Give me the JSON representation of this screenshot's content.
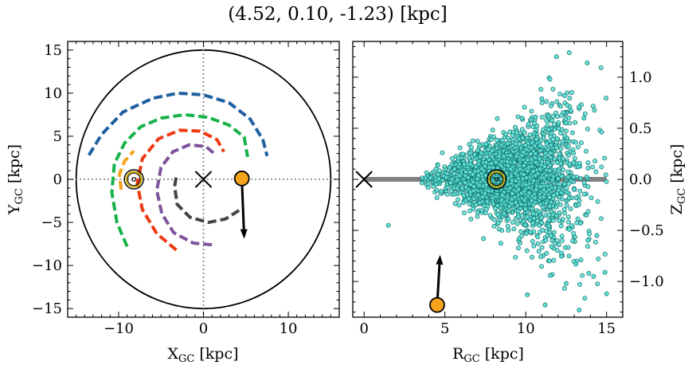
{
  "figure_title": "(4.52, 0.10, -1.23) [kpc]",
  "colors": {
    "blue": "#1f5fa0",
    "green": "#19b24b",
    "orange_arm": "#f5a31c",
    "red": "#ee3a13",
    "purple": "#7e549c",
    "dark": "#444444",
    "marker": "#f5a31c",
    "scatter_fill": "#5fe0d6",
    "scatter_edge": "#0f6f6a",
    "sun_ring": "#c9a800",
    "disk_line": "#808080"
  },
  "chart_data": [
    {
      "type": "line",
      "panel": "left",
      "xlabel": "X",
      "xlabel_sub": "GC",
      "xlabel_unit": " [kpc]",
      "ylabel": "Y",
      "ylabel_sub": "GC",
      "ylabel_unit": " [kpc]",
      "xlim": [
        -16,
        16
      ],
      "ylim": [
        -16,
        16
      ],
      "xticks": [
        -10,
        0,
        10
      ],
      "xtick_labels": [
        "−10",
        "0",
        "10"
      ],
      "yticks": [
        -15,
        -10,
        -5,
        0,
        5,
        10,
        15
      ],
      "ytick_labels": [
        "−15",
        "−10",
        "−5",
        "0",
        "5",
        "10",
        "15"
      ],
      "boundary_circle_radius": 15,
      "crosshair": {
        "x": 0,
        "y": 0
      },
      "galactic_center": [
        0,
        0
      ],
      "sun": [
        -8.2,
        0
      ],
      "object": {
        "x": 4.52,
        "y": 0.1
      },
      "velocity_arrow": {
        "from": [
          4.52,
          0.1
        ],
        "to": [
          4.8,
          -6.9
        ]
      },
      "spiral_arms": [
        {
          "color": "blue",
          "points": [
            [
              -13.5,
              2.8
            ],
            [
              -12,
              5.2
            ],
            [
              -9.5,
              7.8
            ],
            [
              -6,
              9.4
            ],
            [
              -3,
              10
            ],
            [
              0,
              9.8
            ],
            [
              3,
              8.9
            ],
            [
              5.5,
              7
            ],
            [
              7,
              4.6
            ],
            [
              7.5,
              2.7
            ]
          ]
        },
        {
          "color": "green",
          "points": [
            [
              -9,
              -7.8
            ],
            [
              -10.2,
              -5
            ],
            [
              -10.8,
              -1.5
            ],
            [
              -10.5,
              1.8
            ],
            [
              -9.3,
              4.2
            ],
            [
              -7.4,
              6.1
            ],
            [
              -5,
              7.1
            ],
            [
              -2.2,
              7.5
            ],
            [
              0.5,
              7.2
            ],
            [
              3,
              6.3
            ],
            [
              4.8,
              4.9
            ],
            [
              5.2,
              2.6
            ]
          ]
        },
        {
          "color": "orange_arm",
          "points": [
            [
              -9.7,
              -1.2
            ],
            [
              -9.9,
              0.6
            ],
            [
              -9.3,
              2.1
            ],
            [
              -8.2,
              3.3
            ]
          ]
        },
        {
          "color": "red",
          "points": [
            [
              -3.2,
              -8.2
            ],
            [
              -5.5,
              -6.3
            ],
            [
              -7.2,
              -3.5
            ],
            [
              -7.8,
              -0.5
            ],
            [
              -7.2,
              2.4
            ],
            [
              -5.3,
              4.7
            ],
            [
              -2.8,
              5.7
            ],
            [
              -0.4,
              5.6
            ],
            [
              1.6,
              4.6
            ],
            [
              2.4,
              3.2
            ]
          ]
        },
        {
          "color": "purple",
          "points": [
            [
              1,
              -7.6
            ],
            [
              -1.2,
              -7.4
            ],
            [
              -3.5,
              -6.2
            ],
            [
              -4.9,
              -4
            ],
            [
              -5.5,
              -1.3
            ],
            [
              -5,
              1.4
            ],
            [
              -3.6,
              3.2
            ],
            [
              -1.7,
              4
            ],
            [
              0.3,
              3.8
            ],
            [
              1.5,
              2.8
            ]
          ]
        },
        {
          "color": "dark",
          "points": [
            [
              4.2,
              -3.6
            ],
            [
              2.6,
              -4.6
            ],
            [
              0.6,
              -5
            ],
            [
              -1.6,
              -4.4
            ],
            [
              -3.1,
              -2.9
            ],
            [
              -3.4,
              -0.8
            ],
            [
              -3.2,
              0.3
            ]
          ]
        }
      ]
    },
    {
      "type": "scatter",
      "panel": "right",
      "xlabel": "R",
      "xlabel_sub": "GC",
      "xlabel_unit": " [kpc]",
      "ylabel": "Z",
      "ylabel_sub": "GC",
      "ylabel_unit": " [kpc]",
      "xlim": [
        -0.7,
        16
      ],
      "ylim": [
        -1.35,
        1.35
      ],
      "xticks": [
        0,
        5,
        10,
        15
      ],
      "xtick_labels": [
        "0",
        "5",
        "10",
        "15"
      ],
      "yticks": [
        -1.0,
        -0.5,
        0.0,
        0.5,
        1.0
      ],
      "ytick_labels": [
        "−1.0",
        "−0.5",
        "0.0",
        "0.5",
        "1.0"
      ],
      "disk_line": {
        "x": [
          0,
          15
        ],
        "z": 0
      },
      "galactic_center": [
        0,
        0
      ],
      "sun": [
        8.2,
        0
      ],
      "object": {
        "r": 4.52,
        "z": -1.23
      },
      "velocity_arrow": {
        "from": [
          4.52,
          -1.23
        ],
        "to": [
          4.7,
          -0.74
        ]
      },
      "highlighted_stars": [
        [
          1.5,
          -0.45
        ],
        [
          11.9,
          1.2
        ],
        [
          13.8,
          1.14
        ],
        [
          11.5,
          0.98
        ],
        [
          14.2,
          -0.95
        ],
        [
          15.0,
          -1.12
        ],
        [
          13.3,
          -1.28
        ],
        [
          11.2,
          -1.23
        ],
        [
          10.1,
          -1.13
        ],
        [
          13.9,
          -0.92
        ],
        [
          12.2,
          -0.72
        ],
        [
          14.9,
          -0.91
        ],
        [
          12.4,
          0.82
        ],
        [
          11.0,
          0.79
        ],
        [
          13.6,
          0.6
        ],
        [
          12.7,
          -0.49
        ],
        [
          14.4,
          -0.55
        ],
        [
          12.5,
          -1.02
        ],
        [
          10.6,
          0.61
        ],
        [
          9.2,
          0.43
        ],
        [
          13.1,
          -0.83
        ],
        [
          11.6,
          -0.66
        ],
        [
          13.3,
          0.71
        ],
        [
          9.6,
          -0.58
        ]
      ],
      "star_cloud": {
        "count": 2300,
        "r_range": [
          3.5,
          15.0
        ],
        "r_mean": 9.2,
        "r_std": 2.2,
        "z_std_at_r0": 0.03,
        "z_std_slope": 0.032
      }
    }
  ]
}
